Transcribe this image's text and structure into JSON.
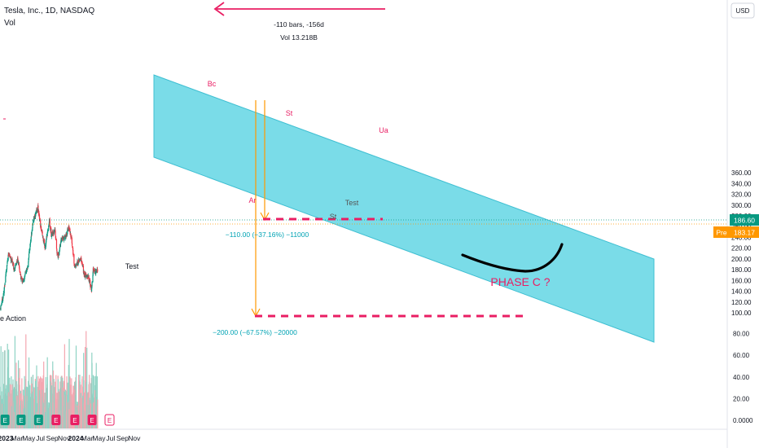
{
  "header": {
    "symbol_line": "Tesla, Inc., 1D, NASDAQ",
    "volume_label": "Vol"
  },
  "measure": {
    "bars_line": "-110 bars, -156d",
    "vol_line": "Vol 13.218B",
    "move1": "−110.00 (−37.16%) −11000",
    "move2": "−200.00 (−67.57%) −20000"
  },
  "annotations": {
    "bc": "Bc",
    "st": "St",
    "ua": "Ua",
    "ar": "Ar",
    "st2": "St",
    "test_mid": "Test",
    "test_low": "Test",
    "phase_c": "PHASE C ?",
    "left_text": "e Action"
  },
  "price_scale": {
    "currency": "USD",
    "last_price": "186.60",
    "pre_label": "Pre",
    "pre_price": "183.17"
  },
  "colors": {
    "channel_fill": "#7adce8",
    "up_candle": "#089981",
    "down_candle": "#f23645",
    "label_red": "#e91e63",
    "teal_text": "#00a3b4",
    "orange": "#ff9800",
    "dash_red": "#e91e63",
    "last_price_bg": "#089981",
    "pre_bg": "#ff9800"
  },
  "chart_data": {
    "type": "candlestick",
    "title": "Tesla, Inc., 1D, NASDAQ",
    "x_ticks": [
      "2023",
      "Mar",
      "May",
      "Jul",
      "Sep",
      "Nov",
      "2024",
      "Mar",
      "May",
      "Jul",
      "Sep",
      "Nov"
    ],
    "y_ticks": [
      "360.00",
      "340.00",
      "320.00",
      "300.00",
      "280.00",
      "260.00",
      "240.00",
      "220.00",
      "200.00",
      "180.00",
      "160.00",
      "140.00",
      "120.00",
      "100.00"
    ],
    "volume_ticks": [
      "80.00",
      "60.00",
      "40.00",
      "20.00",
      "0.0000"
    ],
    "ylim": [
      60,
      378
    ],
    "price_path": [
      {
        "date": "2023-01-03",
        "close": 108
      },
      {
        "date": "2023-01-20",
        "close": 135
      },
      {
        "date": "2023-02-06",
        "close": 190
      },
      {
        "date": "2023-02-16",
        "close": 210
      },
      {
        "date": "2023-03-01",
        "close": 198
      },
      {
        "date": "2023-03-15",
        "close": 182
      },
      {
        "date": "2023-04-03",
        "close": 200
      },
      {
        "date": "2023-04-20",
        "close": 165
      },
      {
        "date": "2023-05-01",
        "close": 158
      },
      {
        "date": "2023-05-25",
        "close": 185
      },
      {
        "date": "2023-06-05",
        "close": 220
      },
      {
        "date": "2023-06-20",
        "close": 265
      },
      {
        "date": "2023-07-01",
        "close": 280
      },
      {
        "date": "2023-07-18",
        "close": 295
      },
      {
        "date": "2023-08-01",
        "close": 260
      },
      {
        "date": "2023-08-24",
        "close": 222
      },
      {
        "date": "2023-09-15",
        "close": 270
      },
      {
        "date": "2023-09-25",
        "close": 245
      },
      {
        "date": "2023-10-15",
        "close": 255
      },
      {
        "date": "2023-10-25",
        "close": 210
      },
      {
        "date": "2023-11-01",
        "close": 205
      },
      {
        "date": "2023-11-15",
        "close": 235
      },
      {
        "date": "2023-12-05",
        "close": 240
      },
      {
        "date": "2023-12-28",
        "close": 258
      },
      {
        "date": "2024-01-10",
        "close": 235
      },
      {
        "date": "2024-01-25",
        "close": 185
      },
      {
        "date": "2024-02-15",
        "close": 195
      },
      {
        "date": "2024-02-28",
        "close": 200
      },
      {
        "date": "2024-03-15",
        "close": 170
      },
      {
        "date": "2024-04-05",
        "close": 168
      },
      {
        "date": "2024-04-22",
        "close": 142
      },
      {
        "date": "2024-05-01",
        "close": 180
      },
      {
        "date": "2024-05-15",
        "close": 175
      },
      {
        "date": "2024-05-24",
        "close": 180
      }
    ],
    "price_levels": {
      "last": 186.6,
      "pre": 183.17,
      "measure_target_1": 185,
      "measure_target_2": 95
    },
    "earnings_markers": [
      "2023-01-25",
      "2023-04-19",
      "2023-07-19",
      "2023-10-18",
      "2024-01-24",
      "2024-04-23",
      "2024-07-23"
    ],
    "legend": "none",
    "grid": false
  }
}
